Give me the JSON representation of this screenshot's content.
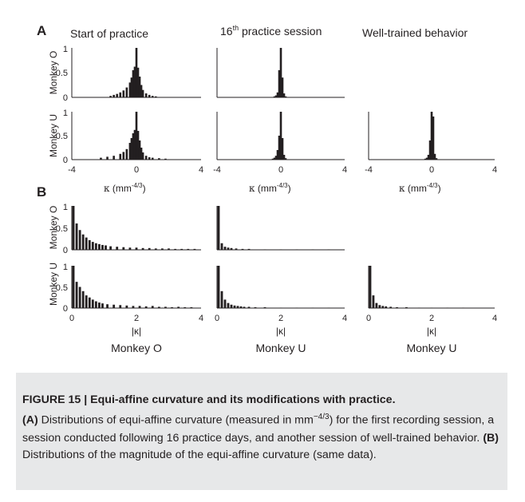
{
  "figure": {
    "panel_a_label": "A",
    "panel_b_label": "B",
    "column_titles": {
      "col1": "Start of practice",
      "col2_main": "16",
      "col2_sup": "th",
      "col2_rest": " practice session",
      "col3": "Well-trained behavior"
    },
    "row_labels": {
      "monkey_o": "Monkey O",
      "monkey_u": "Monkey U"
    },
    "y_ticks": [
      "1",
      "0.5",
      "0"
    ],
    "x_ticks_a": [
      "-4",
      "0",
      "4"
    ],
    "x_ticks_b": [
      "0",
      "2",
      "4"
    ],
    "xlabel_a": {
      "symbol": "κ",
      "unit": " (mm",
      "sup": "-4/3",
      "close": ")"
    },
    "xlabel_b": "|κ|",
    "bottom_labels": [
      "Monkey O",
      "Monkey U",
      "Monkey U"
    ]
  },
  "caption": {
    "title": "FIGURE 15 | Equi-affine curvature and its modifications with practice.",
    "ref_a": "(A)",
    "text_a1": " Distributions of equi-affine curvature (measured in mm",
    "sup_a": "−4/3",
    "text_a2": ") for the first recording session, a session conducted following 16 practice days, and another session of well-trained behavior. ",
    "ref_b": "(B)",
    "text_b": " Distributions of the magnitude of the equi-affine curvature (same data)."
  },
  "chart_data": [
    {
      "type": "bar",
      "panel": "A",
      "row": "Monkey O",
      "column": "Start of practice",
      "x_range": [
        -4,
        4
      ],
      "ylim": [
        0,
        1
      ],
      "peak": {
        "x": 0,
        "value": 1.0
      },
      "x": [
        -1.6,
        -1.4,
        -1.2,
        -1.0,
        -0.8,
        -0.6,
        -0.4,
        -0.3,
        -0.2,
        -0.1,
        0,
        0.1,
        0.2,
        0.3,
        0.4,
        0.6,
        0.8,
        1.0,
        1.2
      ],
      "values": [
        0.03,
        0.05,
        0.07,
        0.1,
        0.14,
        0.2,
        0.3,
        0.4,
        0.55,
        0.62,
        1.0,
        0.6,
        0.42,
        0.25,
        0.15,
        0.08,
        0.05,
        0.03,
        0.02
      ]
    },
    {
      "type": "bar",
      "panel": "A",
      "row": "Monkey O",
      "column": "16th practice session",
      "x_range": [
        -4,
        4
      ],
      "ylim": [
        0,
        1
      ],
      "peak": {
        "x": 0,
        "value": 1.0
      },
      "x": [
        -0.4,
        -0.3,
        -0.2,
        -0.1,
        0,
        0.1,
        0.2,
        0.3
      ],
      "values": [
        0.02,
        0.04,
        0.1,
        0.55,
        1.0,
        0.4,
        0.08,
        0.02
      ]
    },
    {
      "type": "bar",
      "panel": "A",
      "row": "Monkey U",
      "column": "Start of practice",
      "x_range": [
        -4,
        4
      ],
      "ylim": [
        0,
        1
      ],
      "peak": {
        "x": 0,
        "value": 1.0
      },
      "x": [
        -2.2,
        -1.8,
        -1.4,
        -1.0,
        -0.8,
        -0.6,
        -0.4,
        -0.3,
        -0.2,
        -0.1,
        0,
        0.1,
        0.2,
        0.3,
        0.4,
        0.6,
        0.8,
        1.0,
        1.4,
        1.8
      ],
      "values": [
        0.04,
        0.06,
        0.08,
        0.12,
        0.16,
        0.22,
        0.35,
        0.45,
        0.55,
        0.62,
        1.0,
        0.6,
        0.4,
        0.25,
        0.15,
        0.08,
        0.05,
        0.04,
        0.03,
        0.02
      ]
    },
    {
      "type": "bar",
      "panel": "A",
      "row": "Monkey U",
      "column": "16th practice session",
      "x_range": [
        -4,
        4
      ],
      "ylim": [
        0,
        1
      ],
      "peak": {
        "x": 0,
        "value": 1.0
      },
      "x": [
        -0.5,
        -0.4,
        -0.3,
        -0.2,
        -0.1,
        0,
        0.1,
        0.2,
        0.3
      ],
      "values": [
        0.02,
        0.04,
        0.08,
        0.2,
        0.5,
        1.0,
        0.45,
        0.1,
        0.03
      ]
    },
    {
      "type": "bar",
      "panel": "A",
      "row": "Monkey U",
      "column": "Well-trained behavior",
      "x_range": [
        -4,
        4
      ],
      "ylim": [
        0,
        1
      ],
      "peak": {
        "x": 0,
        "value": 1.0
      },
      "x": [
        -0.4,
        -0.3,
        -0.2,
        -0.1,
        0,
        0.1,
        0.2,
        0.3
      ],
      "values": [
        0.02,
        0.04,
        0.1,
        0.4,
        1.0,
        0.9,
        0.12,
        0.03
      ]
    },
    {
      "type": "bar",
      "panel": "B",
      "row": "Monkey O",
      "column": "Monkey O",
      "x_range": [
        0,
        4
      ],
      "ylim": [
        0,
        1
      ],
      "x": [
        0.05,
        0.15,
        0.25,
        0.35,
        0.45,
        0.55,
        0.65,
        0.75,
        0.85,
        0.95,
        1.05,
        1.2,
        1.4,
        1.6,
        1.8,
        2.0,
        2.2,
        2.4,
        2.6,
        2.8,
        3.0,
        3.2,
        3.4,
        3.6,
        3.8
      ],
      "values": [
        1.0,
        0.6,
        0.45,
        0.35,
        0.28,
        0.22,
        0.18,
        0.15,
        0.13,
        0.11,
        0.1,
        0.08,
        0.07,
        0.06,
        0.05,
        0.05,
        0.04,
        0.04,
        0.03,
        0.03,
        0.03,
        0.02,
        0.02,
        0.02,
        0.02
      ]
    },
    {
      "type": "bar",
      "panel": "B",
      "row": "Monkey O",
      "column": "Monkey U",
      "x_range": [
        0,
        4
      ],
      "ylim": [
        0,
        1
      ],
      "x": [
        0.05,
        0.15,
        0.25,
        0.35,
        0.45,
        0.6,
        0.8,
        1.0,
        1.5,
        2.0,
        2.5,
        3.0,
        3.5
      ],
      "values": [
        1.0,
        0.15,
        0.07,
        0.05,
        0.04,
        0.03,
        0.02,
        0.02,
        0.01,
        0.01,
        0.01,
        0.01,
        0.01
      ]
    },
    {
      "type": "bar",
      "panel": "B",
      "row": "Monkey U",
      "column": "Monkey O",
      "x_range": [
        0,
        4
      ],
      "ylim": [
        0,
        1
      ],
      "x": [
        0.05,
        0.15,
        0.25,
        0.35,
        0.45,
        0.55,
        0.65,
        0.75,
        0.85,
        0.95,
        1.1,
        1.3,
        1.5,
        1.7,
        1.9,
        2.1,
        2.3,
        2.5,
        2.7,
        2.9,
        3.1,
        3.3,
        3.5,
        3.7
      ],
      "values": [
        1.0,
        0.62,
        0.5,
        0.4,
        0.3,
        0.25,
        0.2,
        0.16,
        0.13,
        0.11,
        0.09,
        0.08,
        0.07,
        0.06,
        0.05,
        0.05,
        0.04,
        0.05,
        0.03,
        0.03,
        0.02,
        0.03,
        0.02,
        0.02
      ]
    },
    {
      "type": "bar",
      "panel": "B",
      "row": "Monkey U",
      "column": "Monkey U",
      "x_range": [
        0,
        4
      ],
      "ylim": [
        0,
        1
      ],
      "x": [
        0.05,
        0.15,
        0.25,
        0.35,
        0.45,
        0.55,
        0.65,
        0.75,
        0.85,
        1.0,
        1.2,
        1.5,
        2.0,
        2.5,
        3.0,
        3.5
      ],
      "values": [
        1.0,
        0.4,
        0.2,
        0.12,
        0.08,
        0.06,
        0.05,
        0.04,
        0.03,
        0.03,
        0.02,
        0.02,
        0.01,
        0.01,
        0.01,
        0.01
      ]
    },
    {
      "type": "bar",
      "panel": "B",
      "row": "Monkey U",
      "column": "Monkey U",
      "x_range": [
        0,
        4
      ],
      "ylim": [
        0,
        1
      ],
      "x": [
        0.05,
        0.15,
        0.25,
        0.35,
        0.45,
        0.55,
        0.7,
        0.9,
        1.2,
        1.6,
        2.0,
        2.5,
        3.0
      ],
      "values": [
        1.0,
        0.3,
        0.12,
        0.07,
        0.05,
        0.04,
        0.03,
        0.02,
        0.02,
        0.01,
        0.01,
        0.01,
        0.01
      ]
    }
  ]
}
